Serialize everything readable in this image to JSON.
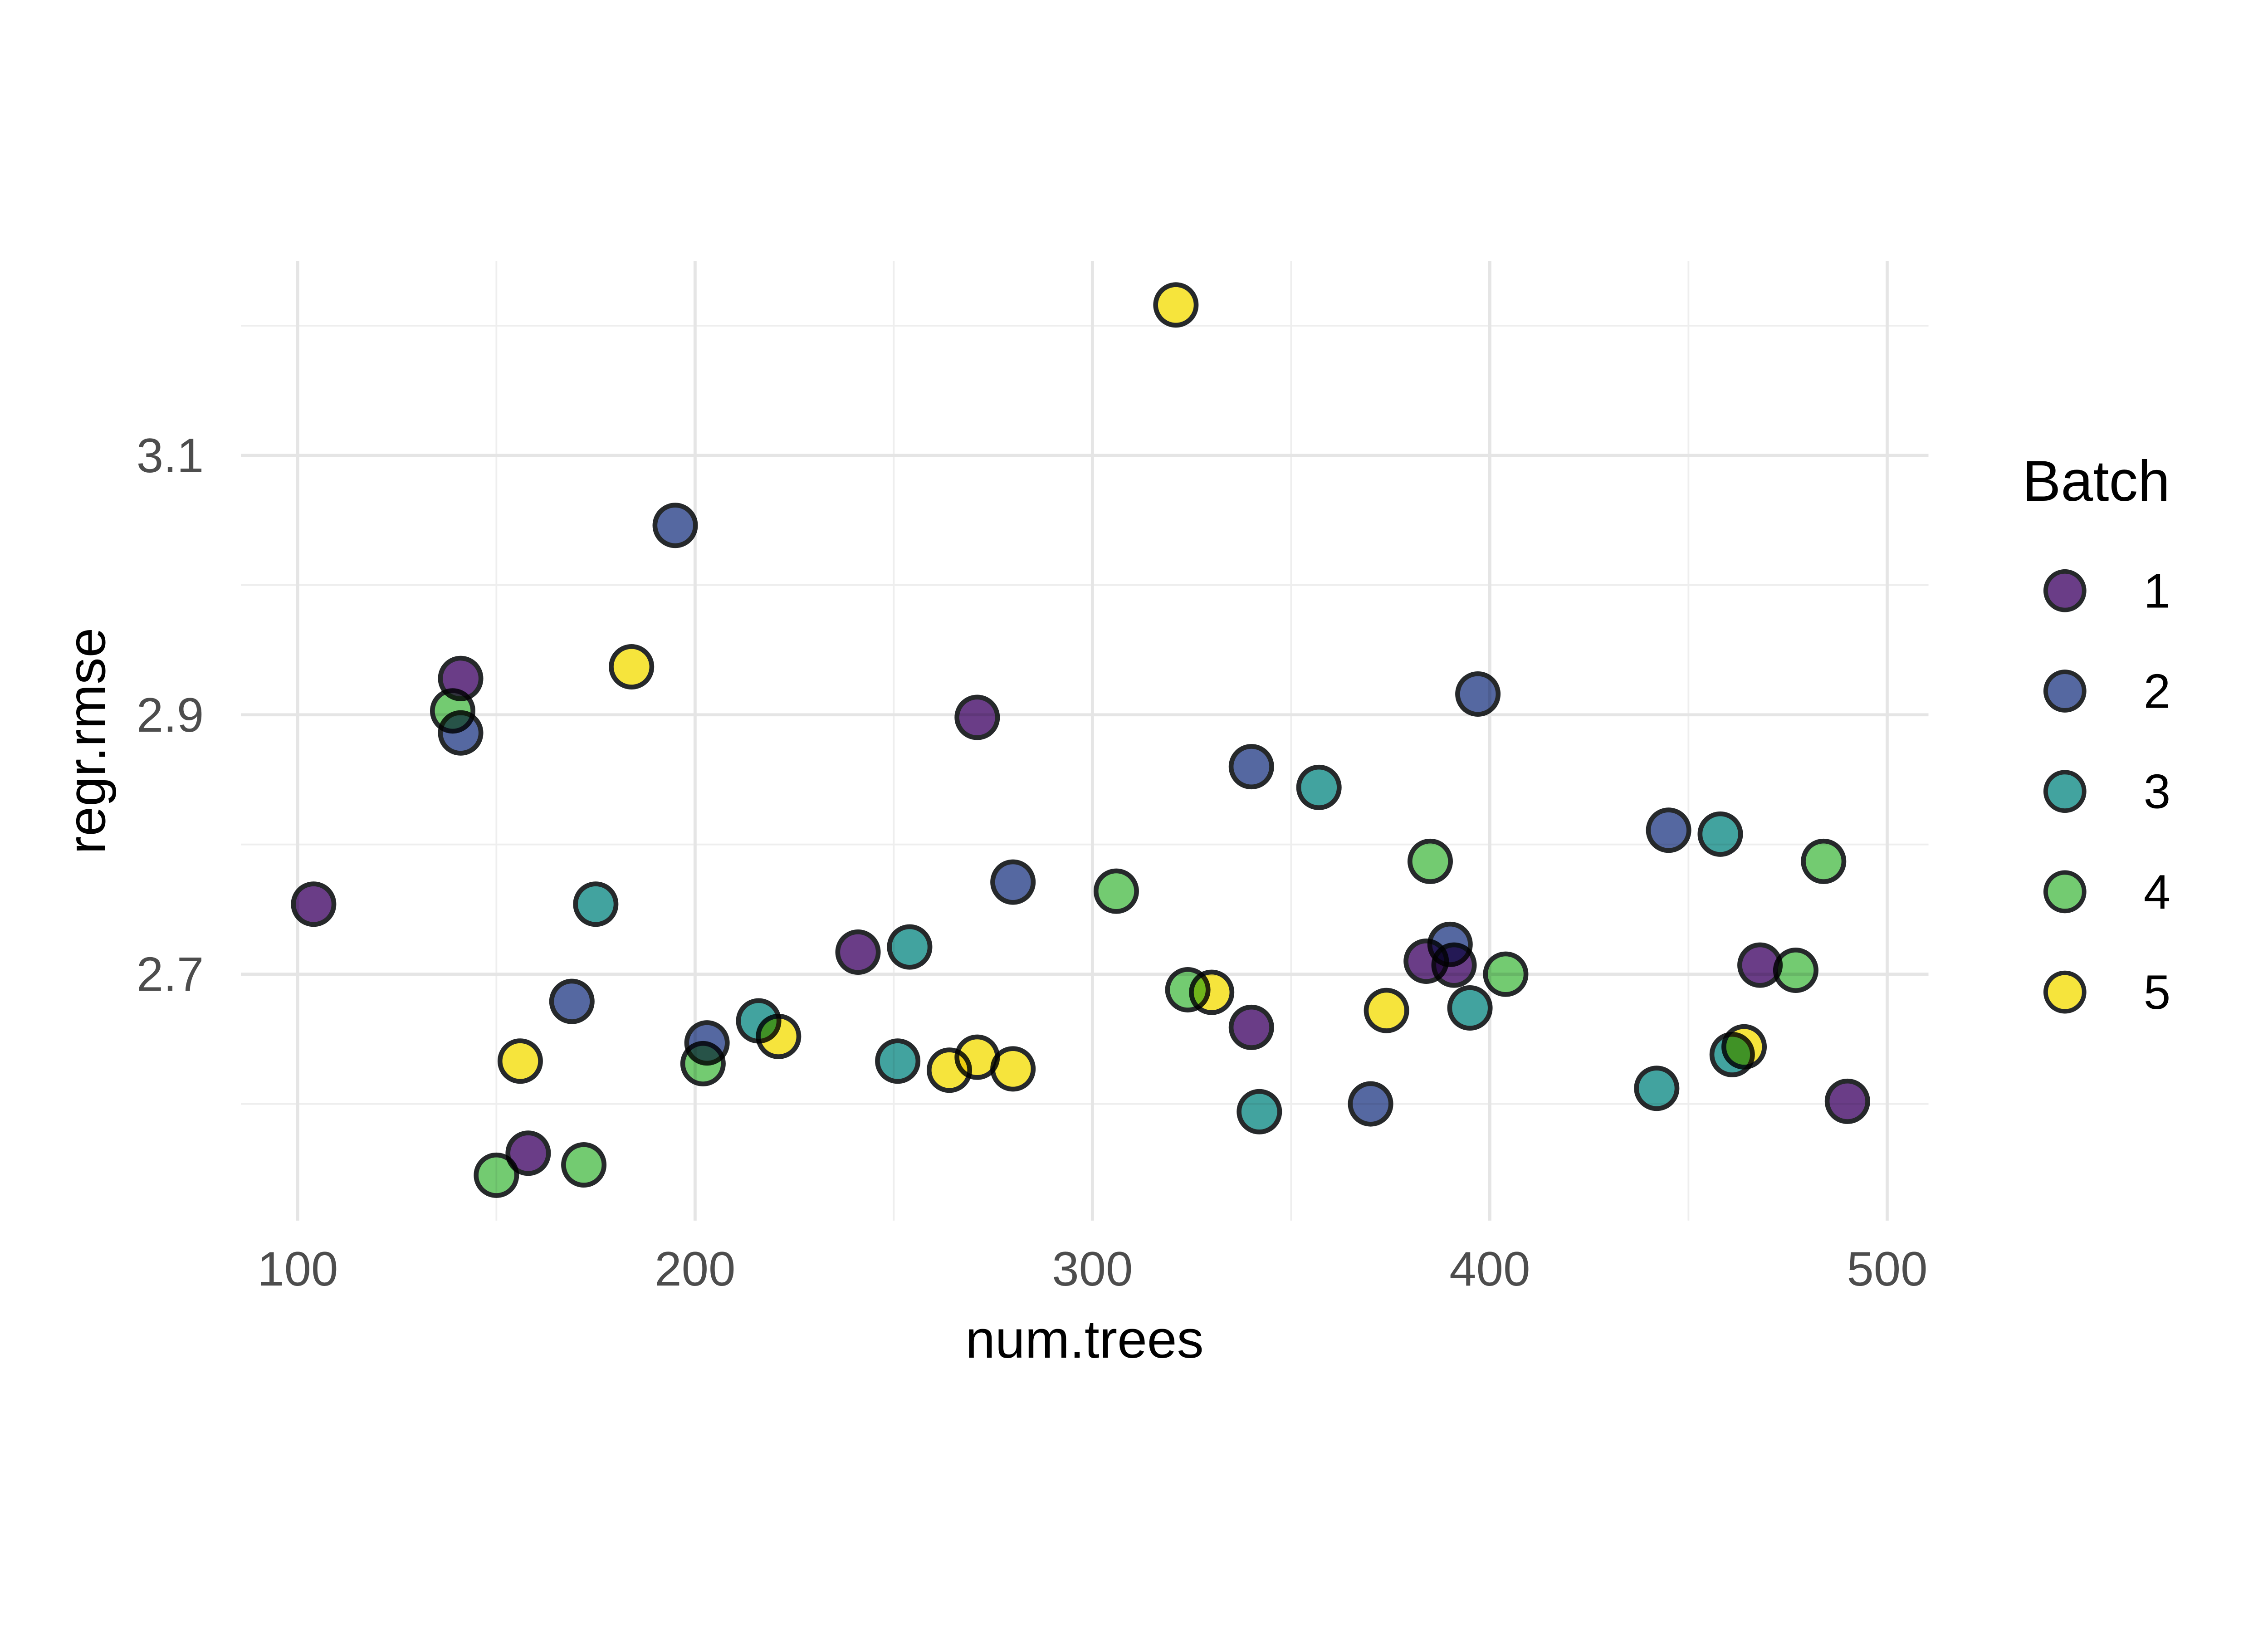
{
  "chart_data": {
    "type": "scatter",
    "title": "",
    "xlabel": "num.trees",
    "ylabel": "regr.rmse",
    "legend_title": "Batch",
    "legend_position": "right",
    "grid": true,
    "xlim": [
      85.7,
      510.4
    ],
    "ylim": [
      2.51,
      3.25
    ],
    "x_major_ticks": [
      100,
      200,
      300,
      400,
      500
    ],
    "x_minor_ticks": [
      150,
      250,
      350,
      450
    ],
    "y_major_ticks": [
      2.7,
      2.9,
      3.1
    ],
    "y_minor_ticks": [
      2.6,
      2.8,
      3.0,
      3.2
    ],
    "point_stroke": "#26292b",
    "series": [
      {
        "name": "1",
        "color": "#6a3d87",
        "points": [
          [
            104,
            2.754
          ],
          [
            141,
            2.928
          ],
          [
            158,
            2.562
          ],
          [
            241,
            2.717
          ],
          [
            271,
            2.898
          ],
          [
            340,
            2.659
          ],
          [
            384,
            2.71
          ],
          [
            391,
            2.707
          ],
          [
            468,
            2.707
          ],
          [
            490,
            2.602
          ]
        ]
      },
      {
        "name": "2",
        "color": "#5568a1",
        "points": [
          [
            141,
            2.886
          ],
          [
            169,
            2.679
          ],
          [
            195,
            3.046
          ],
          [
            203,
            2.647
          ],
          [
            280,
            2.771
          ],
          [
            340,
            2.86
          ],
          [
            370,
            2.6
          ],
          [
            390,
            2.723
          ],
          [
            397,
            2.916
          ],
          [
            445,
            2.811
          ]
        ]
      },
      {
        "name": "3",
        "color": "#42a39f",
        "points": [
          [
            175,
            2.754
          ],
          [
            216,
            2.664
          ],
          [
            251,
            2.633
          ],
          [
            254,
            2.721
          ],
          [
            342,
            2.594
          ],
          [
            357,
            2.844
          ],
          [
            395,
            2.674
          ],
          [
            442,
            2.612
          ],
          [
            458,
            2.808
          ],
          [
            461,
            2.638
          ]
        ]
      },
      {
        "name": "4",
        "color": "#73cb71",
        "points": [
          [
            139,
            2.903
          ],
          [
            150,
            2.545
          ],
          [
            172,
            2.553
          ],
          [
            202,
            2.631
          ],
          [
            306,
            2.764
          ],
          [
            324,
            2.688
          ],
          [
            385,
            2.787
          ],
          [
            404,
            2.7
          ],
          [
            477,
            2.703
          ],
          [
            484,
            2.787
          ]
        ]
      },
      {
        "name": "5",
        "color": "#f6e43c",
        "points": [
          [
            156,
            2.633
          ],
          [
            184,
            2.937
          ],
          [
            221,
            2.652
          ],
          [
            264,
            2.626
          ],
          [
            271,
            2.636
          ],
          [
            280,
            2.627
          ],
          [
            321,
            3.216
          ],
          [
            330,
            2.686
          ],
          [
            374,
            2.672
          ],
          [
            464,
            2.644
          ]
        ]
      }
    ]
  },
  "colors": {
    "background": "#ffffff",
    "grid_major": "#e5e5e5",
    "grid_minor": "#eeeeee",
    "tick_text": "#4d4d4d",
    "title_text": "#000000"
  }
}
